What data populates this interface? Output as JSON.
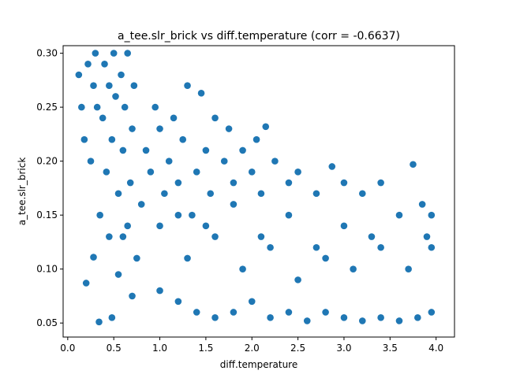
{
  "chart_data": {
    "type": "scatter",
    "title": "a_tee.slr_brick vs diff.temperature (corr = -0.6637)",
    "xlabel": "diff.temperature",
    "ylabel": "a_tee.slr_brick",
    "xlim": [
      -0.05,
      4.2
    ],
    "ylim": [
      0.037,
      0.307
    ],
    "x_ticks": [
      0.0,
      0.5,
      1.0,
      1.5,
      2.0,
      2.5,
      3.0,
      3.5,
      4.0
    ],
    "x_tick_labels": [
      "0.0",
      "0.5",
      "1.0",
      "1.5",
      "2.0",
      "2.5",
      "3.0",
      "3.5",
      "4.0"
    ],
    "y_ticks": [
      0.05,
      0.1,
      0.15,
      0.2,
      0.25,
      0.3
    ],
    "y_tick_labels": [
      "0.05",
      "0.10",
      "0.15",
      "0.20",
      "0.25",
      "0.30"
    ],
    "grid": false,
    "point_color": "#1f77b4",
    "series": [
      {
        "points": [
          [
            0.12,
            0.28
          ],
          [
            0.15,
            0.25
          ],
          [
            0.18,
            0.22
          ],
          [
            0.22,
            0.29
          ],
          [
            0.25,
            0.2
          ],
          [
            0.28,
            0.27
          ],
          [
            0.3,
            0.3
          ],
          [
            0.32,
            0.25
          ],
          [
            0.35,
            0.15
          ],
          [
            0.38,
            0.24
          ],
          [
            0.4,
            0.29
          ],
          [
            0.42,
            0.19
          ],
          [
            0.45,
            0.27
          ],
          [
            0.48,
            0.22
          ],
          [
            0.5,
            0.3
          ],
          [
            0.52,
            0.26
          ],
          [
            0.55,
            0.17
          ],
          [
            0.58,
            0.28
          ],
          [
            0.6,
            0.21
          ],
          [
            0.62,
            0.25
          ],
          [
            0.65,
            0.3
          ],
          [
            0.68,
            0.18
          ],
          [
            0.7,
            0.23
          ],
          [
            0.72,
            0.27
          ],
          [
            0.2,
            0.087
          ],
          [
            0.28,
            0.111
          ],
          [
            0.34,
            0.051
          ],
          [
            0.48,
            0.055
          ],
          [
            0.45,
            0.13
          ],
          [
            0.6,
            0.13
          ],
          [
            0.55,
            0.095
          ],
          [
            0.75,
            0.11
          ],
          [
            0.7,
            0.075
          ],
          [
            0.65,
            0.14
          ],
          [
            0.8,
            0.16
          ],
          [
            0.85,
            0.21
          ],
          [
            0.9,
            0.19
          ],
          [
            0.95,
            0.25
          ],
          [
            1.0,
            0.23
          ],
          [
            1.05,
            0.17
          ],
          [
            1.1,
            0.2
          ],
          [
            1.15,
            0.24
          ],
          [
            1.2,
            0.18
          ],
          [
            1.25,
            0.22
          ],
          [
            1.3,
            0.27
          ],
          [
            1.35,
            0.15
          ],
          [
            1.45,
            0.263
          ],
          [
            1.4,
            0.19
          ],
          [
            1.5,
            0.21
          ],
          [
            1.55,
            0.17
          ],
          [
            1.6,
            0.24
          ],
          [
            1.7,
            0.2
          ],
          [
            1.75,
            0.23
          ],
          [
            1.8,
            0.18
          ],
          [
            1.9,
            0.21
          ],
          [
            2.0,
            0.19
          ],
          [
            2.05,
            0.22
          ],
          [
            2.1,
            0.17
          ],
          [
            2.15,
            0.232
          ],
          [
            2.25,
            0.2
          ],
          [
            2.4,
            0.18
          ],
          [
            2.5,
            0.19
          ],
          [
            2.7,
            0.17
          ],
          [
            2.87,
            0.195
          ],
          [
            3.0,
            0.18
          ],
          [
            3.2,
            0.17
          ],
          [
            3.4,
            0.18
          ],
          [
            3.75,
            0.197
          ],
          [
            3.85,
            0.16
          ],
          [
            3.95,
            0.15
          ],
          [
            1.0,
            0.08
          ],
          [
            1.2,
            0.07
          ],
          [
            1.4,
            0.06
          ],
          [
            1.6,
            0.055
          ],
          [
            1.8,
            0.06
          ],
          [
            2.0,
            0.07
          ],
          [
            2.2,
            0.055
          ],
          [
            2.4,
            0.06
          ],
          [
            2.6,
            0.052
          ],
          [
            2.8,
            0.06
          ],
          [
            3.0,
            0.055
          ],
          [
            3.2,
            0.052
          ],
          [
            3.4,
            0.055
          ],
          [
            3.6,
            0.052
          ],
          [
            3.8,
            0.055
          ],
          [
            3.95,
            0.06
          ],
          [
            1.0,
            0.14
          ],
          [
            1.3,
            0.11
          ],
          [
            1.6,
            0.13
          ],
          [
            1.9,
            0.1
          ],
          [
            2.2,
            0.12
          ],
          [
            2.5,
            0.09
          ],
          [
            2.8,
            0.11
          ],
          [
            3.1,
            0.1
          ],
          [
            3.4,
            0.12
          ],
          [
            3.7,
            0.1
          ],
          [
            3.95,
            0.12
          ],
          [
            1.2,
            0.15
          ],
          [
            1.5,
            0.14
          ],
          [
            1.8,
            0.16
          ],
          [
            2.1,
            0.13
          ],
          [
            2.4,
            0.15
          ],
          [
            2.7,
            0.12
          ],
          [
            3.0,
            0.14
          ],
          [
            3.3,
            0.13
          ],
          [
            3.6,
            0.15
          ],
          [
            3.9,
            0.13
          ]
        ]
      }
    ]
  }
}
